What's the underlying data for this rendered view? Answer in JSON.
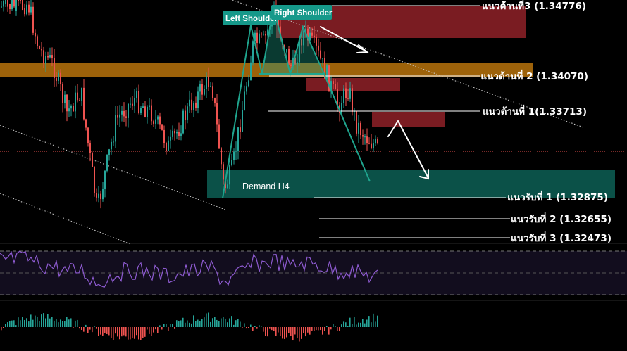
{
  "chart_data": {
    "type": "candlestick",
    "title": "",
    "colors": {
      "background": "#000000",
      "bull": "#26a69a",
      "bear": "#ef5350",
      "supply_zone": "#7a1c22",
      "demand_zone": "#0b5148",
      "resistance_band": "#b8730c",
      "rsi_line": "#8e5bd1",
      "rsi_panel": "#120d1e",
      "pattern_line": "#1fa58e",
      "annotation_arrow": "#ffffff"
    },
    "price_scale": {
      "min": 1.3215,
      "max": 1.3495
    },
    "levels": [
      {
        "name": "resistance-3",
        "label": "แนวต้านที่3 (1.34776)",
        "value": 1.34776
      },
      {
        "name": "resistance-2",
        "label": "แนวต้านที่ 2 (1.34070)",
        "value": 1.3407
      },
      {
        "name": "resistance-1",
        "label": "แนวต้านที่ 1(1.33713)",
        "value": 1.33713
      },
      {
        "name": "support-1",
        "label": "แนวรับที่ 1 (1.32875)",
        "value": 1.32875
      },
      {
        "name": "support-2",
        "label": "แนวรับที่ 2 (1.32655)",
        "value": 1.32655
      },
      {
        "name": "support-3",
        "label": "แนวรับที่ 3 (1.32473)",
        "value": 1.32473
      }
    ],
    "annotations": {
      "left_shoulder": "Left Shoulder",
      "right_shoulder": "Right Shoulder",
      "demand_zone": "Demand H4"
    },
    "current_price": 1.3355,
    "rsi_levels": [
      70,
      50,
      30
    ],
    "pattern": "head-and-shoulders"
  }
}
